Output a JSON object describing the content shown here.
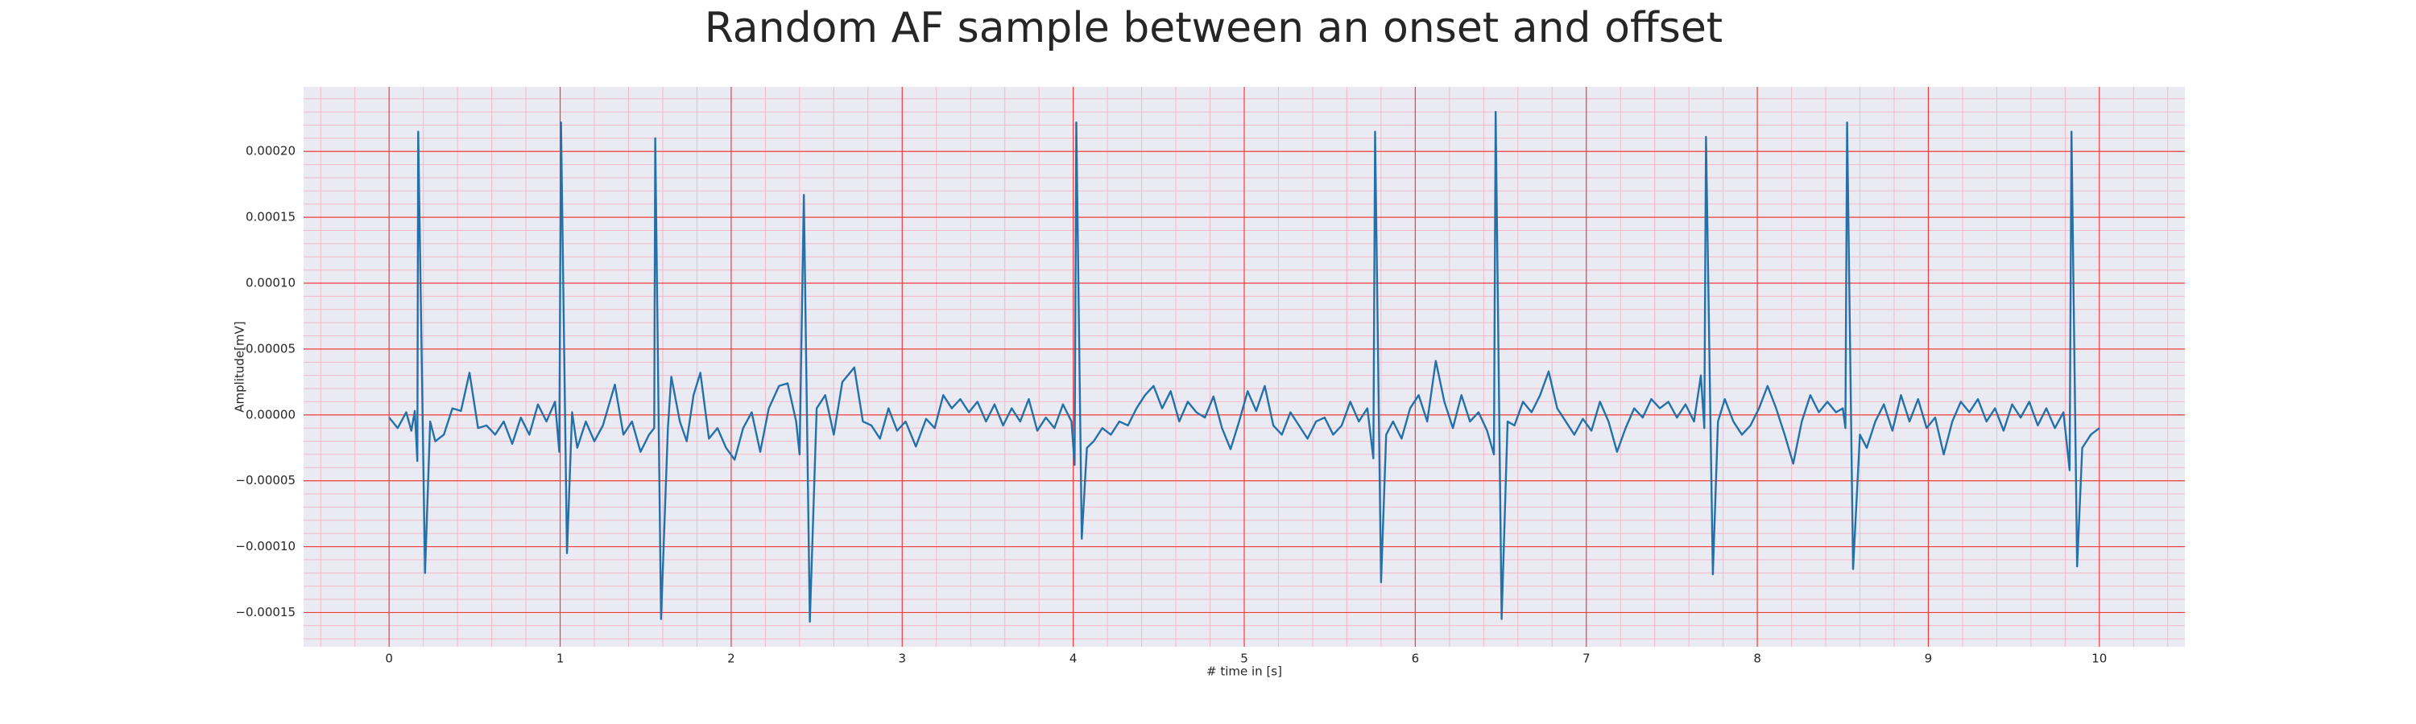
{
  "chart_data": {
    "type": "line",
    "title": "Random AF sample between an onset and offset",
    "xlabel": "# time in [s]",
    "ylabel": "Amplitude[mV]",
    "color": "#2471a9",
    "grid": true,
    "xlim": [
      -0.5,
      10.5
    ],
    "ylim": [
      -0.000176,
      0.000249
    ],
    "xticks": [
      0,
      1,
      2,
      3,
      4,
      5,
      6,
      7,
      8,
      9,
      10
    ],
    "yticks": [
      {
        "value": -0.00015,
        "label": "−0.00015"
      },
      {
        "value": -0.0001,
        "label": "−0.00010"
      },
      {
        "value": -5e-05,
        "label": "−0.00005"
      },
      {
        "value": 0,
        "label": "0.00000"
      },
      {
        "value": 5e-05,
        "label": "0.00005"
      },
      {
        "value": 0.0001,
        "label": "0.00010"
      },
      {
        "value": 0.00015,
        "label": "0.00015"
      },
      {
        "value": 0.0002,
        "label": "0.00020"
      }
    ],
    "x": [
      0.0,
      0.05,
      0.1,
      0.13,
      0.15,
      0.165,
      0.17,
      0.21,
      0.24,
      0.27,
      0.32,
      0.37,
      0.42,
      0.47,
      0.52,
      0.57,
      0.62,
      0.67,
      0.72,
      0.77,
      0.82,
      0.87,
      0.92,
      0.97,
      0.995,
      1.005,
      1.04,
      1.07,
      1.1,
      1.15,
      1.2,
      1.25,
      1.32,
      1.37,
      1.42,
      1.47,
      1.52,
      1.55,
      1.556,
      1.59,
      1.63,
      1.65,
      1.7,
      1.74,
      1.78,
      1.82,
      1.87,
      1.92,
      1.97,
      2.02,
      2.07,
      2.12,
      2.17,
      2.22,
      2.28,
      2.33,
      2.38,
      2.4,
      2.425,
      2.46,
      2.5,
      2.55,
      2.6,
      2.65,
      2.72,
      2.77,
      2.82,
      2.87,
      2.92,
      2.97,
      3.02,
      3.08,
      3.14,
      3.19,
      3.24,
      3.29,
      3.34,
      3.39,
      3.44,
      3.49,
      3.54,
      3.59,
      3.64,
      3.69,
      3.74,
      3.79,
      3.84,
      3.89,
      3.94,
      3.99,
      4.008,
      4.018,
      4.05,
      4.08,
      4.12,
      4.17,
      4.22,
      4.27,
      4.32,
      4.37,
      4.42,
      4.47,
      4.52,
      4.57,
      4.62,
      4.67,
      4.72,
      4.77,
      4.82,
      4.87,
      4.92,
      4.97,
      5.02,
      5.07,
      5.12,
      5.17,
      5.22,
      5.27,
      5.32,
      5.37,
      5.42,
      5.47,
      5.52,
      5.57,
      5.62,
      5.67,
      5.72,
      5.755,
      5.765,
      5.8,
      5.83,
      5.87,
      5.92,
      5.97,
      6.02,
      6.07,
      6.12,
      6.17,
      6.22,
      6.27,
      6.32,
      6.37,
      6.42,
      6.46,
      6.47,
      6.505,
      6.54,
      6.58,
      6.63,
      6.68,
      6.73,
      6.78,
      6.83,
      6.88,
      6.93,
      6.98,
      7.03,
      7.08,
      7.13,
      7.18,
      7.23,
      7.28,
      7.33,
      7.38,
      7.43,
      7.48,
      7.53,
      7.58,
      7.63,
      7.67,
      7.69,
      7.7,
      7.74,
      7.77,
      7.81,
      7.86,
      7.91,
      7.96,
      8.01,
      8.06,
      8.11,
      8.16,
      8.21,
      8.26,
      8.31,
      8.36,
      8.41,
      8.46,
      8.5,
      8.515,
      8.525,
      8.56,
      8.6,
      8.64,
      8.69,
      8.74,
      8.79,
      8.84,
      8.89,
      8.94,
      8.99,
      9.04,
      9.09,
      9.14,
      9.19,
      9.24,
      9.29,
      9.34,
      9.39,
      9.44,
      9.49,
      9.54,
      9.59,
      9.64,
      9.69,
      9.74,
      9.79,
      9.826,
      9.837,
      9.87,
      9.9,
      9.95,
      10.0
    ],
    "values": [
      -2e-06,
      -1e-05,
      2e-06,
      -1.2e-05,
      3e-06,
      -3.5e-05,
      0.000215,
      -0.00012,
      -5e-06,
      -2e-05,
      -1.5e-05,
      5e-06,
      3e-06,
      3.2e-05,
      -1e-05,
      -8e-06,
      -1.5e-05,
      -5e-06,
      -2.2e-05,
      -2e-06,
      -1.5e-05,
      8e-06,
      -5e-06,
      1e-05,
      -2.8e-05,
      0.000222,
      -0.000105,
      2e-06,
      -2.5e-05,
      -5e-06,
      -2e-05,
      -8e-06,
      2.3e-05,
      -1.5e-05,
      -5e-06,
      -2.8e-05,
      -1.5e-05,
      -1e-05,
      0.00021,
      -0.000155,
      -1e-05,
      2.9e-05,
      -5e-06,
      -2e-05,
      1.5e-05,
      3.2e-05,
      -1.8e-05,
      -1e-05,
      -2.5e-05,
      -3.4e-05,
      -1e-05,
      2e-06,
      -2.8e-05,
      5e-06,
      2.2e-05,
      2.4e-05,
      -5e-06,
      -3e-05,
      0.000167,
      -0.000157,
      5e-06,
      1.5e-05,
      -1.5e-05,
      2.5e-05,
      3.6e-05,
      -5e-06,
      -8e-06,
      -1.8e-05,
      5e-06,
      -1.2e-05,
      -5e-06,
      -2.4e-05,
      -3e-06,
      -1e-05,
      1.5e-05,
      5e-06,
      1.2e-05,
      2e-06,
      1e-05,
      -5e-06,
      8e-06,
      -8e-06,
      5e-06,
      -5e-06,
      1.2e-05,
      -1.2e-05,
      -2e-06,
      -1e-05,
      8e-06,
      -5e-06,
      -3.8e-05,
      0.000222,
      -9.4e-05,
      -2.5e-05,
      -2e-05,
      -1e-05,
      -1.5e-05,
      -5e-06,
      -8e-06,
      5e-06,
      1.5e-05,
      2.2e-05,
      5e-06,
      1.8e-05,
      -5e-06,
      1e-05,
      2e-06,
      -2e-06,
      1.4e-05,
      -1e-05,
      -2.6e-05,
      -5e-06,
      1.8e-05,
      3e-06,
      2.2e-05,
      -8e-06,
      -1.5e-05,
      2e-06,
      -8e-06,
      -1.8e-05,
      -5e-06,
      -2e-06,
      -1.5e-05,
      -8e-06,
      1e-05,
      -5e-06,
      5e-06,
      -3.3e-05,
      0.000215,
      -0.000127,
      -1.5e-05,
      -5e-06,
      -1.8e-05,
      5e-06,
      1.5e-05,
      -5e-06,
      4.1e-05,
      1e-05,
      -1e-05,
      1.5e-05,
      -5e-06,
      2e-06,
      -1.2e-05,
      -3e-05,
      0.00023,
      -0.000155,
      -5e-06,
      -8e-06,
      1e-05,
      2e-06,
      1.5e-05,
      3.3e-05,
      5e-06,
      -5e-06,
      -1.5e-05,
      -3e-06,
      -1.2e-05,
      1e-05,
      -5e-06,
      -2.8e-05,
      -1e-05,
      5e-06,
      -2e-06,
      1.2e-05,
      5e-06,
      1e-05,
      -2e-06,
      8e-06,
      -5e-06,
      3e-05,
      -1e-05,
      0.000211,
      -0.000121,
      -5e-06,
      1.2e-05,
      -5e-06,
      -1.5e-05,
      -8e-06,
      5e-06,
      2.2e-05,
      5e-06,
      -1.5e-05,
      -3.7e-05,
      -5e-06,
      1.5e-05,
      2e-06,
      1e-05,
      2e-06,
      5e-06,
      -1e-05,
      0.000222,
      -0.000117,
      -1.5e-05,
      -2.5e-05,
      -5e-06,
      8e-06,
      -1.2e-05,
      1.5e-05,
      -5e-06,
      1.2e-05,
      -1e-05,
      -2e-06,
      -3e-05,
      -5e-06,
      1e-05,
      2e-06,
      1.2e-05,
      -5e-06,
      5e-06,
      -1.2e-05,
      8e-06,
      -2e-06,
      1e-05,
      -8e-06,
      5e-06,
      -1e-05,
      2e-06,
      -4.2e-05,
      0.000215,
      -0.000115,
      -2.5e-05,
      -1.5e-05,
      -1e-05
    ]
  }
}
